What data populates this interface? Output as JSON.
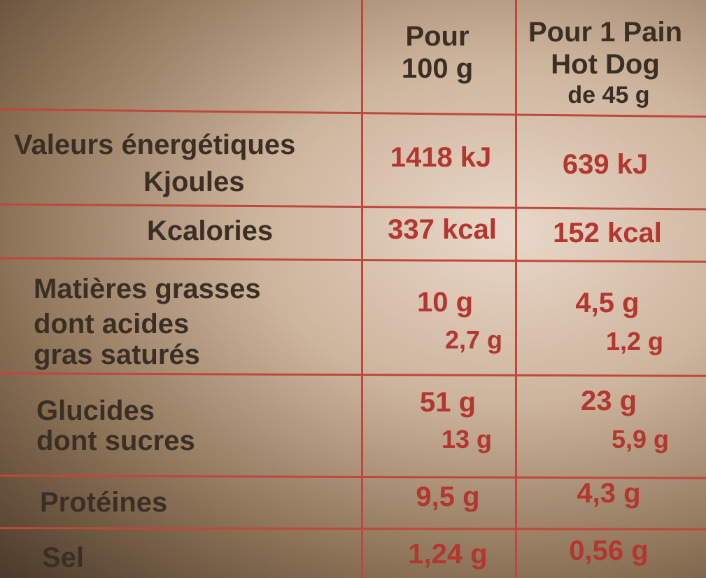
{
  "header": {
    "columns": [
      [
        "Pour",
        "100 g"
      ],
      [
        "Pour 1 Pain",
        "Hot Dog",
        "de 45 g"
      ]
    ]
  },
  "rows": [
    {
      "label": [
        "Valeurs énergétiques",
        "Kjoules"
      ],
      "values": [
        [
          "1418 kJ"
        ],
        [
          "639 kJ"
        ]
      ]
    },
    {
      "label": [
        "Kcalories"
      ],
      "values": [
        [
          "337 kcal"
        ],
        [
          "152 kcal"
        ]
      ]
    },
    {
      "label": [
        "Matières grasses",
        "dont acides",
        "gras saturés"
      ],
      "values": [
        [
          "10 g",
          "2,7 g"
        ],
        [
          "4,5 g",
          "1,2 g"
        ]
      ]
    },
    {
      "label": [
        "Glucides",
        "dont sucres"
      ],
      "values": [
        [
          "51 g",
          "13 g"
        ],
        [
          "23 g",
          "5,9 g"
        ]
      ]
    },
    {
      "label": [
        "Protéines"
      ],
      "values": [
        [
          "9,5 g"
        ],
        [
          "4,3 g"
        ]
      ]
    },
    {
      "label": [
        "Sel"
      ],
      "values": [
        [
          "1,24 g"
        ],
        [
          "0,56 g"
        ]
      ]
    }
  ]
}
